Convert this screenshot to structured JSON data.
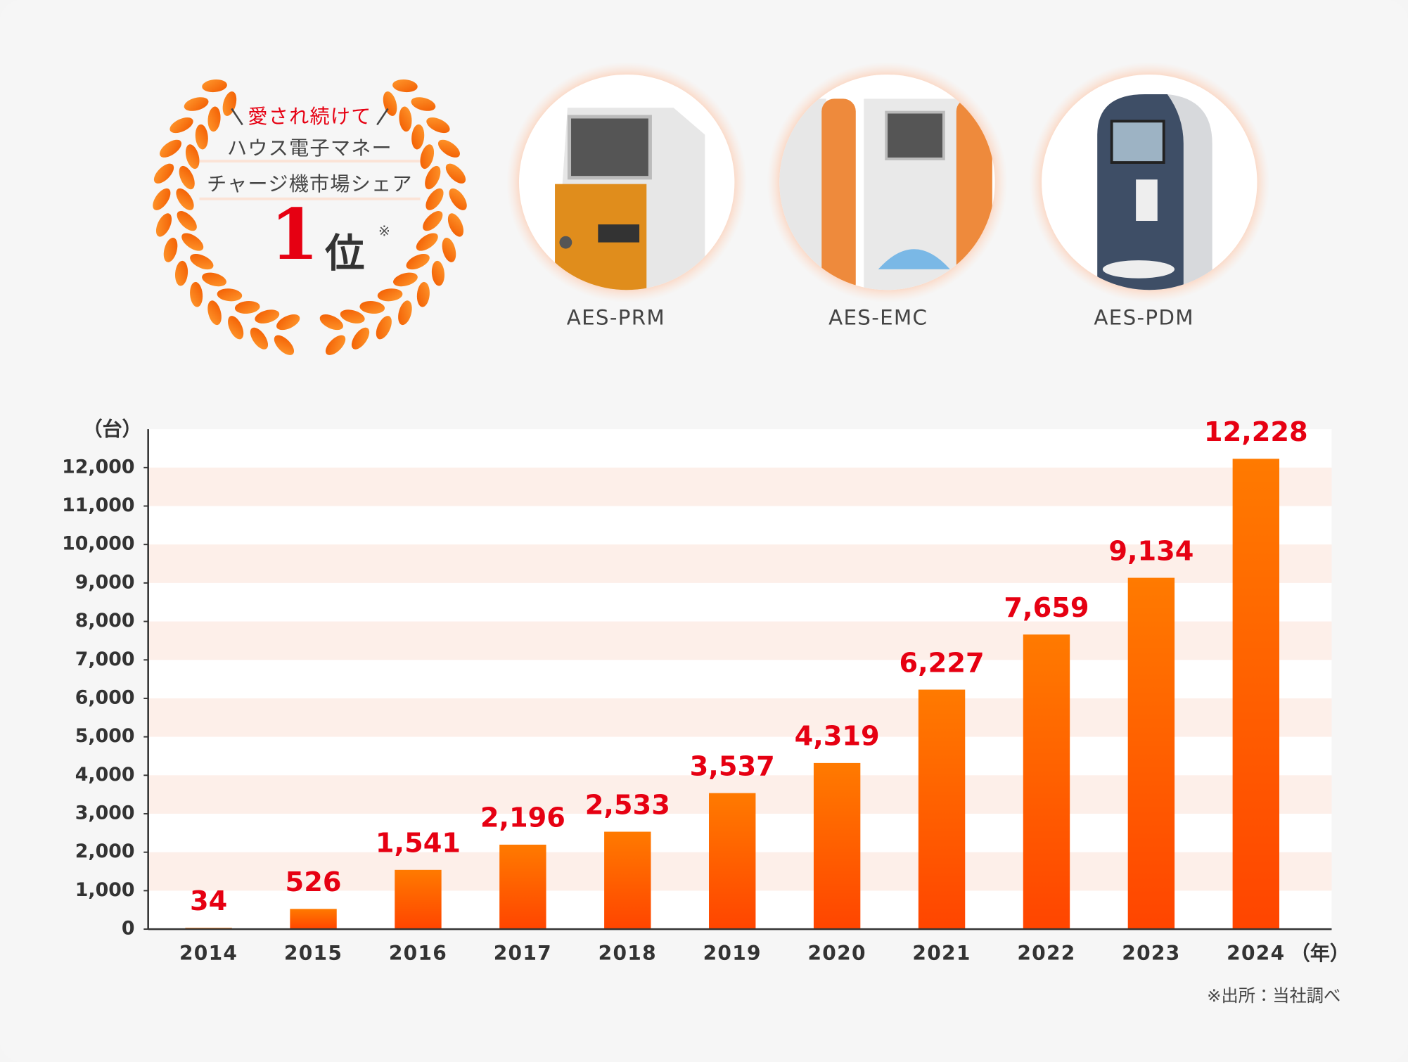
{
  "badge": {
    "tagline": "愛され続けて",
    "line1": "ハウス電子マネー",
    "line2": "チャージ機市場シェア",
    "rank": "1",
    "rank_unit": "位",
    "mark": "※"
  },
  "products": [
    {
      "name": "AES-PRM"
    },
    {
      "name": "AES-EMC"
    },
    {
      "name": "AES-PDM"
    }
  ],
  "chart_data": {
    "type": "bar",
    "y_axis_label": "（台）",
    "x_axis_label": "（年）",
    "note": "※出所：当社調べ",
    "categories": [
      "2014",
      "2015",
      "2016",
      "2017",
      "2018",
      "2019",
      "2020",
      "2021",
      "2022",
      "2023",
      "2024"
    ],
    "values": [
      34,
      526,
      1541,
      2196,
      2533,
      3537,
      4319,
      6227,
      7659,
      9134,
      12228
    ],
    "value_labels": [
      "34",
      "526",
      "1,541",
      "2,196",
      "2,533",
      "3,537",
      "4,319",
      "6,227",
      "7,659",
      "9,134",
      "12,228"
    ],
    "color": "#ff6a00",
    "label_color": "#e60012",
    "stripe_color": "#fdefe9",
    "ylim": [
      0,
      13000
    ],
    "yticks": [
      0,
      {
        "value": 1000,
        "label": "1,000"
      },
      {
        "value": 2000,
        "label": "2,000"
      },
      {
        "value": 3000,
        "label": "3,000"
      },
      {
        "value": 4000,
        "label": "4,000"
      },
      {
        "value": 5000,
        "label": "5,000"
      },
      {
        "value": 6000,
        "label": "6,000"
      },
      {
        "value": 7000,
        "label": "7,000"
      },
      {
        "value": 8000,
        "label": "8,000"
      },
      {
        "value": 9000,
        "label": "9,000"
      },
      {
        "value": 10000,
        "label": "10,000"
      },
      {
        "value": 11000,
        "label": "11,000"
      },
      {
        "value": 12000,
        "label": "12,000"
      }
    ],
    "grid": true
  }
}
